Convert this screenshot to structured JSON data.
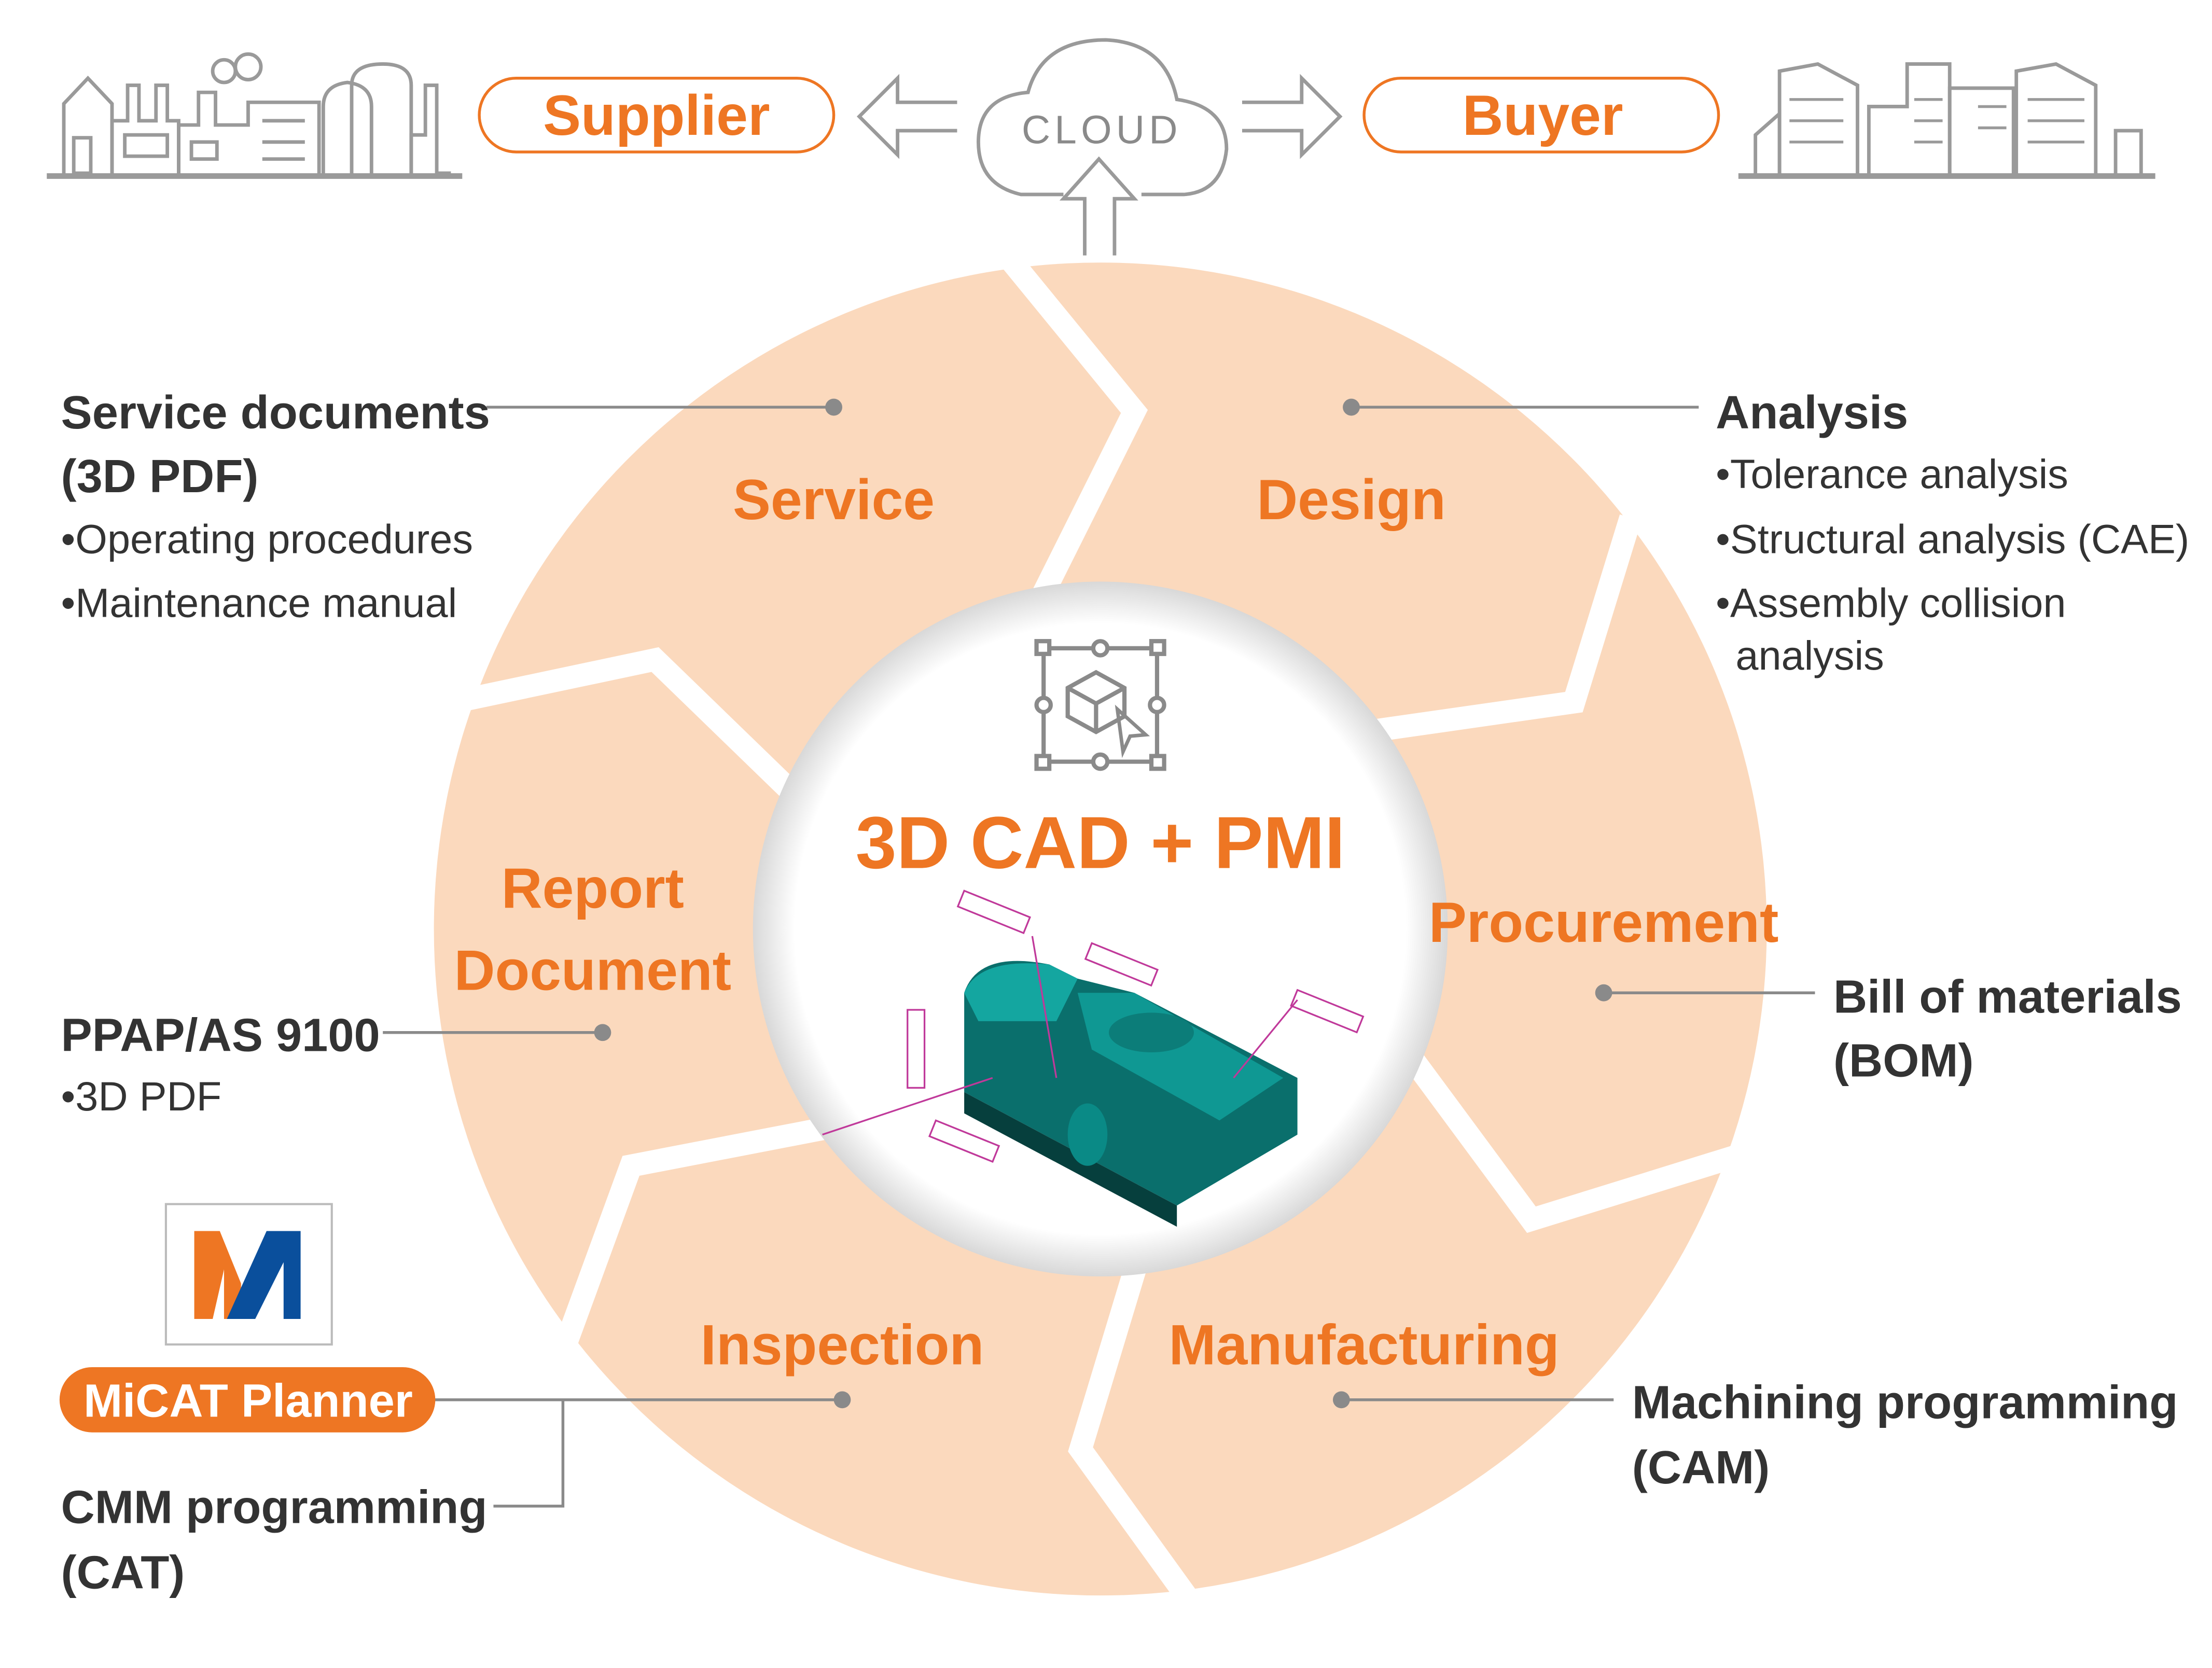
{
  "top": {
    "supplier": "Supplier",
    "cloud": "CLOUD",
    "buyer": "Buyer"
  },
  "center": {
    "title": "3D CAD + PMI",
    "icon": "3d-cube-select-icon"
  },
  "stages": {
    "service": "Service",
    "design": "Design",
    "procurement": "Procurement",
    "manufacturing": "Manufacturing",
    "inspection": "Inspection",
    "report_line1": "Report",
    "report_line2": "Document"
  },
  "notes": {
    "service": {
      "title_line1": "Service documents",
      "title_line2": "(3D PDF)",
      "items": [
        "•Operating procedures",
        "•Maintenance manual"
      ]
    },
    "analysis": {
      "title": "Analysis",
      "items": [
        "•Tolerance analysis",
        "•Structural analysis (CAE)",
        "•Assembly collision",
        "analysis"
      ]
    },
    "report": {
      "title": "PPAP/AS 9100",
      "items": [
        "•3D PDF"
      ]
    },
    "procurement": {
      "title_line1": "Bill of materials",
      "title_line2": "(BOM)"
    },
    "inspection": {
      "badge": "MiCAT Planner",
      "title_line1": "CMM programming",
      "title_line2": "(CAT)"
    },
    "manufacturing": {
      "title_line1": "Machining programming",
      "title_line2": "(CAM)"
    }
  },
  "logo": {
    "letter": "M"
  },
  "colors": {
    "accent": "#ee7623",
    "ring": "#fbd9bd",
    "line": "#9a9a9a",
    "model": "#0a8a86",
    "pmi": "#c0399a",
    "logo_blue": "#0a4f9c"
  }
}
